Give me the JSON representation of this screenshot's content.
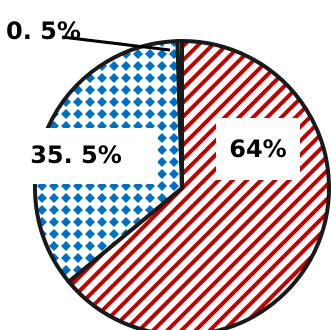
{
  "chart_data": {
    "type": "pie",
    "title": "",
    "slices": [
      {
        "label": "64%",
        "value": 64,
        "fill_color": "#c00000",
        "pattern": "diagonal-stripes"
      },
      {
        "label": "35.5%",
        "value": 35.5,
        "fill_color": "#0070c0",
        "pattern": "diamond-dots"
      },
      {
        "label": "0.5%",
        "value": 0.5,
        "fill_color": "#92d050",
        "pattern": "solid"
      }
    ],
    "label_texts": {
      "slice_1": "64%",
      "slice_2": "35. 5%",
      "slice_3": "0. 5%"
    },
    "legend": "none"
  }
}
